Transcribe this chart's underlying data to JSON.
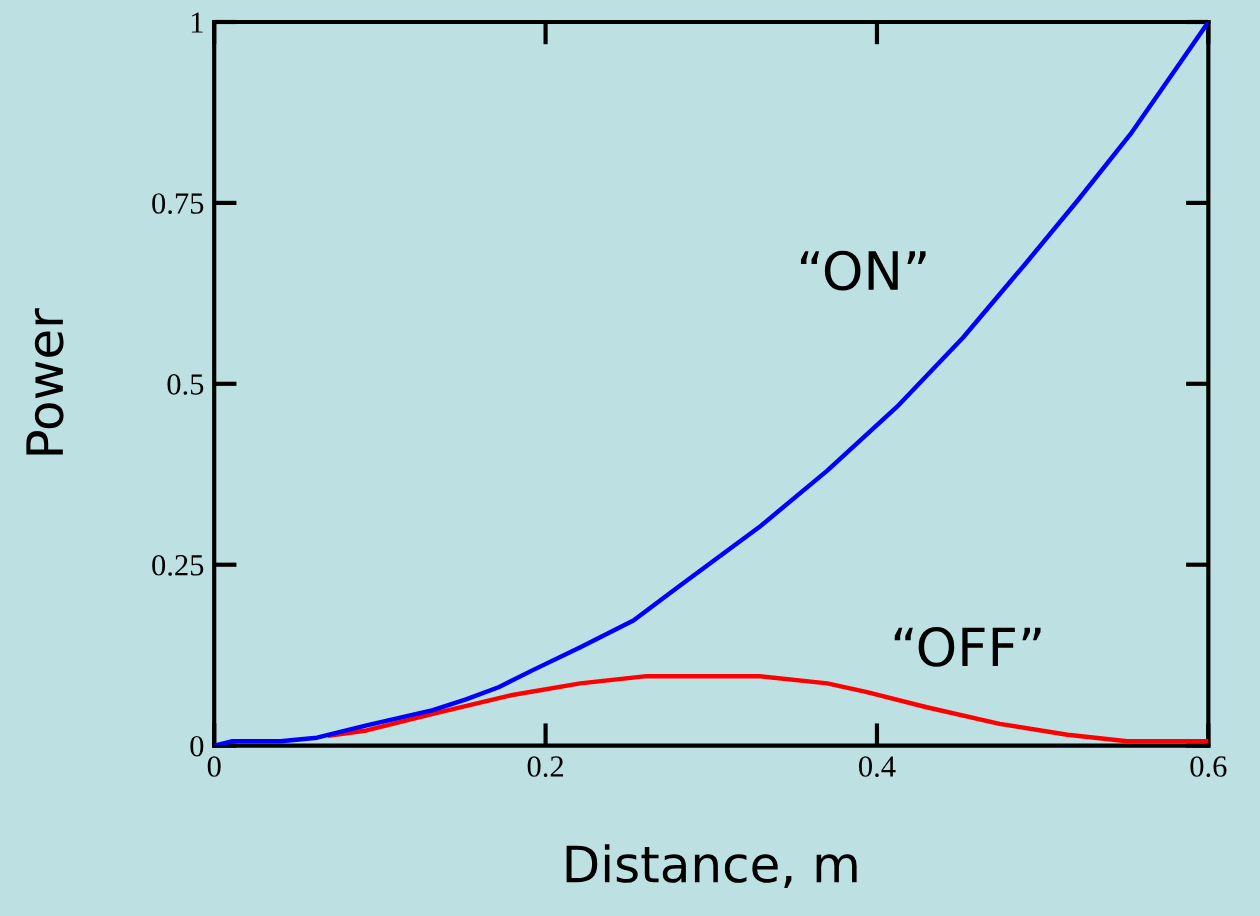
{
  "chart_data": {
    "type": "line",
    "xlabel": "Distance, m",
    "ylabel": "Power",
    "xlim": [
      0,
      0.6
    ],
    "xticks": [
      0,
      0.2,
      0.4,
      0.6
    ],
    "ylim": [
      0,
      1
    ],
    "yticks": [
      0,
      0.25,
      0.5,
      0.75,
      1
    ],
    "grid": false,
    "legend": false,
    "marker": "none",
    "line_style": "solid",
    "series": [
      {
        "name": "“ON”",
        "color": "#0000ff",
        "x": [
          0,
          0.011,
          0.04,
          0.062,
          0.092,
          0.132,
          0.152,
          0.172,
          0.192,
          0.221,
          0.253,
          0.281,
          0.329,
          0.37,
          0.412,
          0.452,
          0.49,
          0.521,
          0.553,
          0.581,
          0.6
        ],
        "values": [
          0,
          0.006,
          0.006,
          0.011,
          0.028,
          0.049,
          0.064,
          0.081,
          0.104,
          0.136,
          0.173,
          0.221,
          0.302,
          0.38,
          0.468,
          0.564,
          0.667,
          0.753,
          0.845,
          0.937,
          1
        ]
      },
      {
        "name": "“OFF”",
        "color": "#ff0000",
        "x": [
          0.07,
          0.092,
          0.132,
          0.18,
          0.221,
          0.261,
          0.329,
          0.37,
          0.394,
          0.43,
          0.474,
          0.515,
          0.551,
          0.6
        ],
        "values": [
          0.014,
          0.021,
          0.044,
          0.07,
          0.086,
          0.096,
          0.096,
          0.086,
          0.074,
          0.053,
          0.03,
          0.015,
          0.006,
          0.006
        ]
      }
    ]
  }
}
